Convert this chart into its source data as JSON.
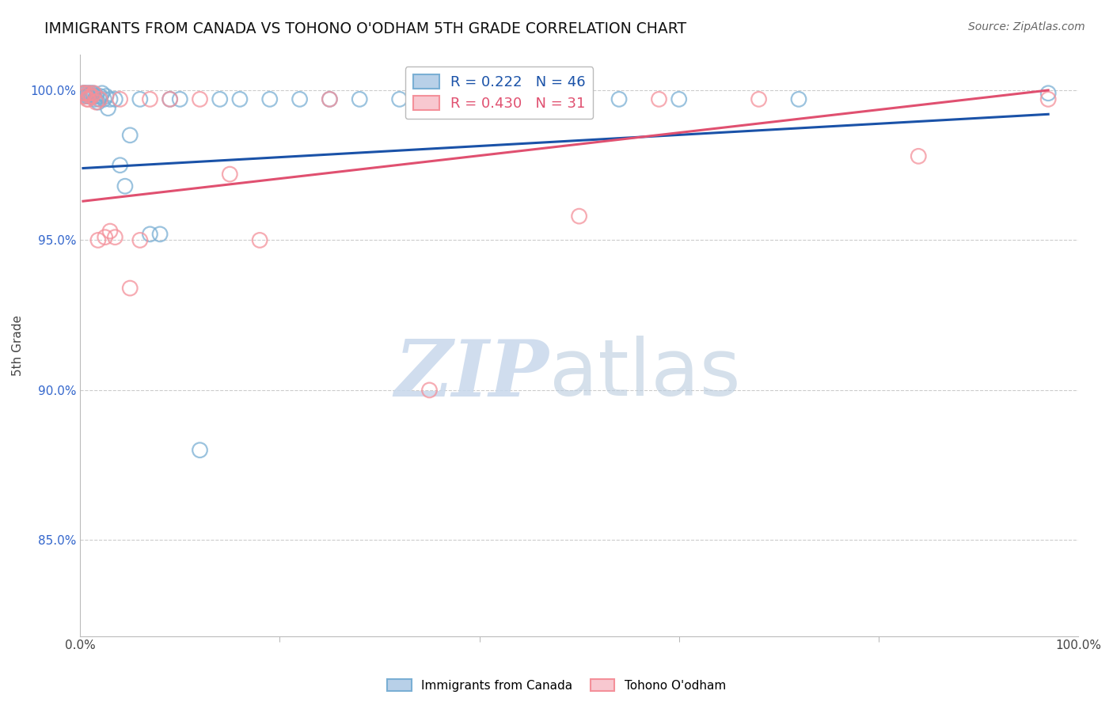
{
  "title": "IMMIGRANTS FROM CANADA VS TOHONO O'ODHAM 5TH GRADE CORRELATION CHART",
  "source": "Source: ZipAtlas.com",
  "ylabel": "5th Grade",
  "yaxis_labels": [
    "100.0%",
    "95.0%",
    "90.0%",
    "85.0%"
  ],
  "yaxis_values": [
    1.0,
    0.95,
    0.9,
    0.85
  ],
  "xlim": [
    0.0,
    1.0
  ],
  "ylim": [
    0.818,
    1.012
  ],
  "legend1_label": "Immigrants from Canada",
  "legend2_label": "Tohono O'odham",
  "R1": 0.222,
  "N1": 46,
  "R2": 0.43,
  "N2": 31,
  "color_blue": "#7AAFD4",
  "color_pink": "#F4909A",
  "trendline_blue": "#1A52A8",
  "trendline_pink": "#E05070",
  "blue_x": [
    0.003,
    0.004,
    0.005,
    0.006,
    0.007,
    0.008,
    0.009,
    0.01,
    0.011,
    0.012,
    0.013,
    0.014,
    0.015,
    0.016,
    0.018,
    0.019,
    0.02,
    0.022,
    0.024,
    0.026,
    0.028,
    0.03,
    0.035,
    0.04,
    0.045,
    0.05,
    0.06,
    0.07,
    0.08,
    0.09,
    0.1,
    0.12,
    0.14,
    0.16,
    0.19,
    0.22,
    0.25,
    0.28,
    0.32,
    0.36,
    0.42,
    0.48,
    0.54,
    0.6,
    0.72,
    0.97
  ],
  "blue_y": [
    0.999,
    0.999,
    0.999,
    0.998,
    0.999,
    0.998,
    0.999,
    0.998,
    0.999,
    0.998,
    0.999,
    0.998,
    0.997,
    0.998,
    0.996,
    0.997,
    0.998,
    0.999,
    0.997,
    0.998,
    0.994,
    0.997,
    0.997,
    0.975,
    0.968,
    0.985,
    0.997,
    0.952,
    0.952,
    0.997,
    0.997,
    0.88,
    0.997,
    0.997,
    0.997,
    0.997,
    0.997,
    0.997,
    0.997,
    0.997,
    0.997,
    0.997,
    0.997,
    0.997,
    0.997,
    0.999
  ],
  "pink_x": [
    0.003,
    0.004,
    0.005,
    0.007,
    0.008,
    0.009,
    0.01,
    0.012,
    0.014,
    0.016,
    0.018,
    0.02,
    0.025,
    0.03,
    0.035,
    0.04,
    0.05,
    0.06,
    0.07,
    0.09,
    0.12,
    0.15,
    0.18,
    0.25,
    0.35,
    0.42,
    0.5,
    0.58,
    0.68,
    0.84,
    0.97
  ],
  "pink_y": [
    0.999,
    0.998,
    0.999,
    0.997,
    0.997,
    0.999,
    0.998,
    0.998,
    0.999,
    0.996,
    0.95,
    0.997,
    0.951,
    0.953,
    0.951,
    0.997,
    0.934,
    0.95,
    0.997,
    0.997,
    0.997,
    0.972,
    0.95,
    0.997,
    0.9,
    0.997,
    0.958,
    0.997,
    0.997,
    0.978,
    0.997
  ],
  "blue_trend_x": [
    0.003,
    0.97
  ],
  "blue_trend_y": [
    0.974,
    0.992
  ],
  "pink_trend_x": [
    0.003,
    0.97
  ],
  "pink_trend_y": [
    0.963,
    1.0
  ],
  "watermark_zip": "ZIP",
  "watermark_atlas": "atlas",
  "background_color": "#FFFFFF"
}
